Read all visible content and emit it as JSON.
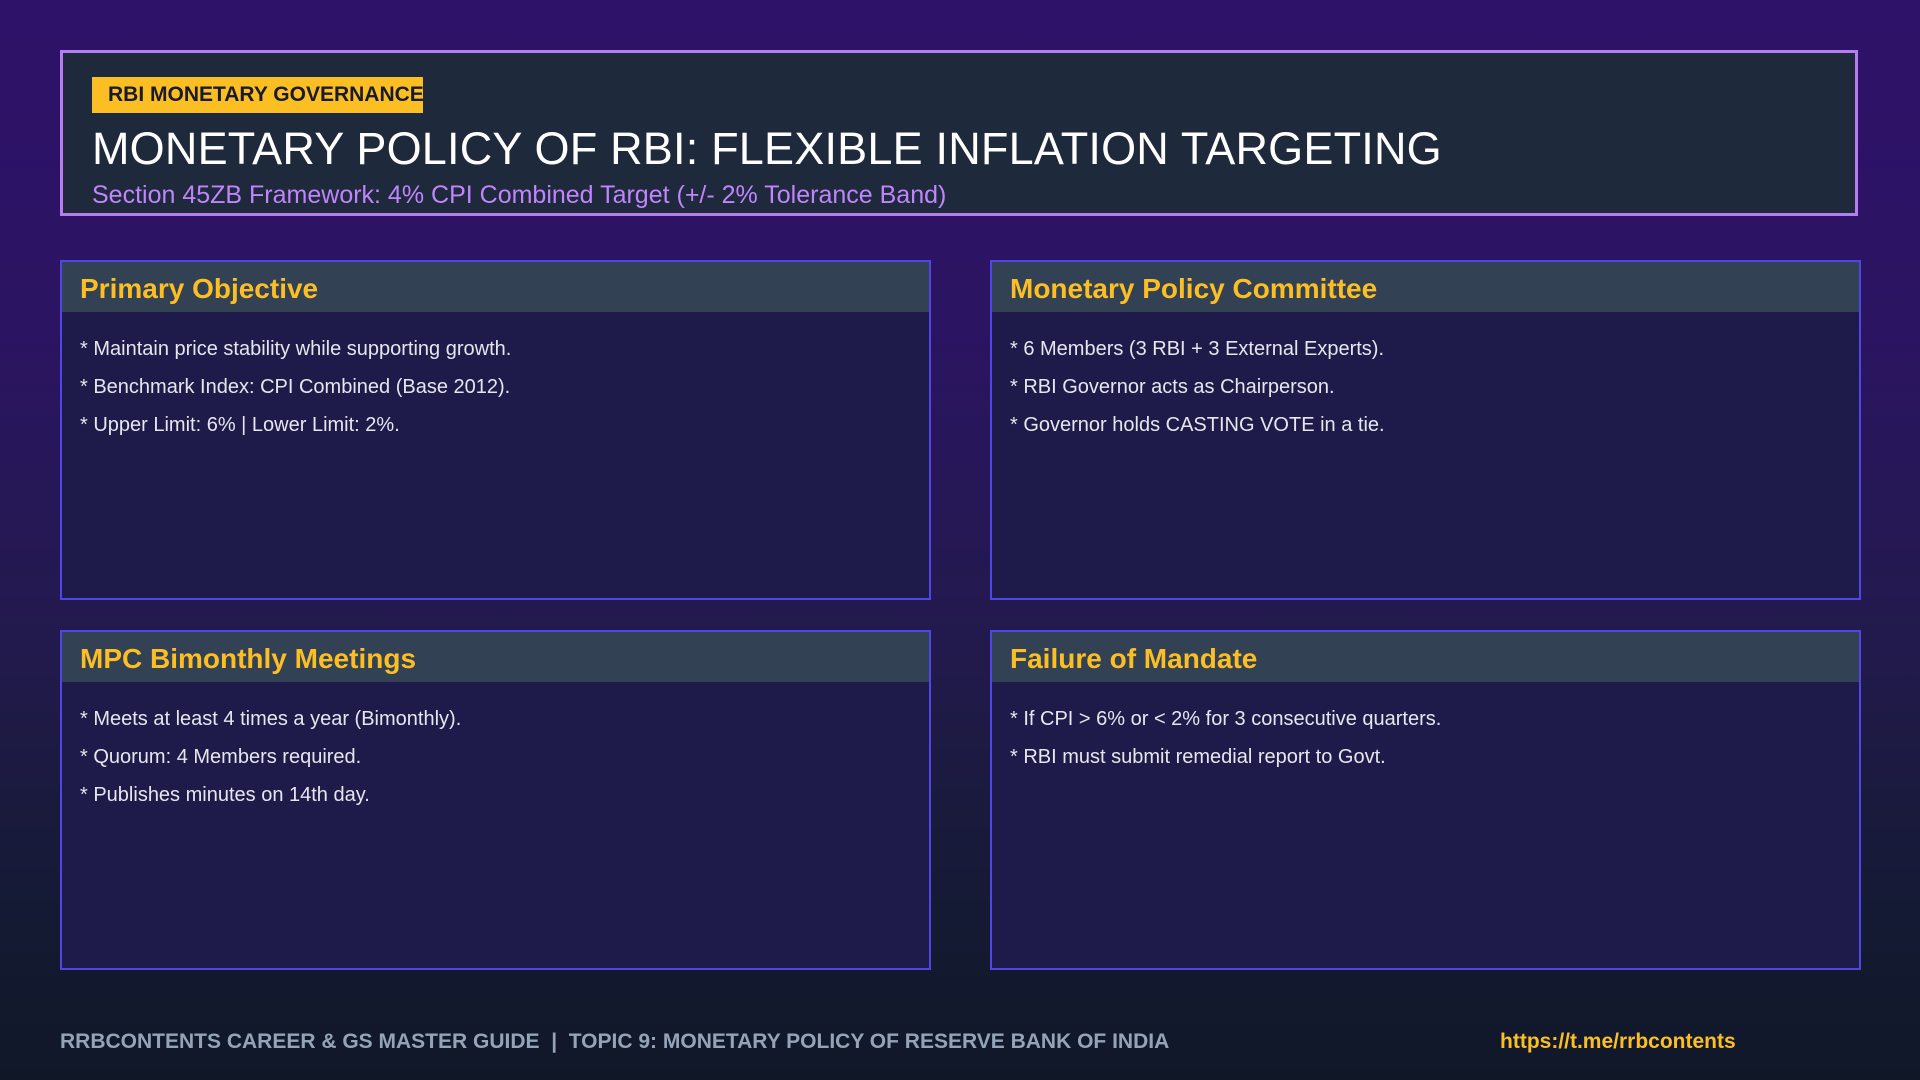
{
  "header": {
    "badge": "RBI MONETARY GOVERNANCE",
    "title": "MONETARY POLICY OF RBI: FLEXIBLE INFLATION TARGETING",
    "subtitle": "Section 45ZB Framework: 4% CPI Combined Target (+/- 2% Tolerance Band)"
  },
  "cards": [
    {
      "title": "Primary Objective",
      "lines": [
        "* Maintain price stability while supporting growth.",
        "* Benchmark Index: CPI Combined (Base 2012).",
        "* Upper Limit: 6% | Lower Limit: 2%."
      ]
    },
    {
      "title": "Monetary Policy Committee",
      "lines": [
        "* 6 Members (3 RBI + 3 External Experts).",
        "* RBI Governor acts as Chairperson.",
        "* Governor holds CASTING VOTE in a tie."
      ]
    },
    {
      "title": "MPC Bimonthly Meetings",
      "lines": [
        "* Meets at least 4 times a year (Bimonthly).",
        "* Quorum: 4 Members required.",
        "* Publishes minutes on 14th day."
      ]
    },
    {
      "title": "Failure of Mandate",
      "lines": [
        "* If CPI > 6% or < 2% for 3 consecutive quarters.",
        "* RBI must submit remedial report to Govt."
      ]
    }
  ],
  "footer": {
    "left": "RRBCONTENTS CAREER & GS MASTER GUIDE  |  TOPIC 9: MONETARY POLICY OF RESERVE BANK OF INDIA",
    "link": "https://t.me/rrbcontents"
  },
  "colors": {
    "accent": "#fbbf24",
    "header_border": "#b57ef0",
    "subtitle": "#c084fc",
    "card_border": "#4f46e5"
  }
}
